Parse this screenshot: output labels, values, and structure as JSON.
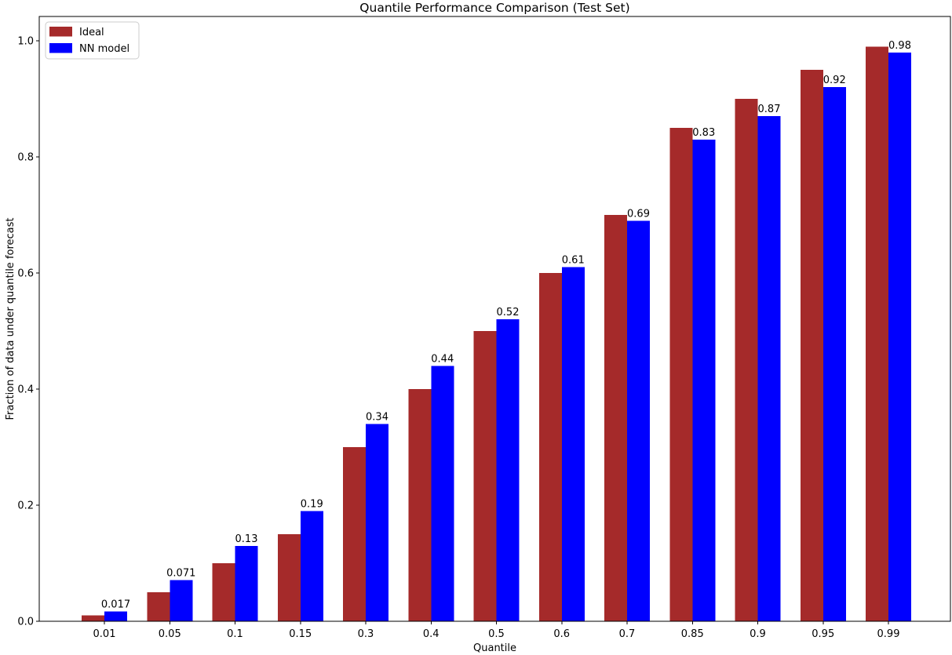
{
  "chart_data": {
    "type": "bar",
    "title": "Quantile Performance Comparison (Test Set)",
    "xlabel": "Quantile",
    "ylabel": "Fraction of data under quantile forecast",
    "categories": [
      "0.01",
      "0.05",
      "0.1",
      "0.15",
      "0.3",
      "0.4",
      "0.5",
      "0.6",
      "0.7",
      "0.85",
      "0.9",
      "0.95",
      "0.99"
    ],
    "series": [
      {
        "name": "Ideal",
        "color": "#A52A2A",
        "values": [
          0.01,
          0.05,
          0.1,
          0.15,
          0.3,
          0.4,
          0.5,
          0.6,
          0.7,
          0.85,
          0.9,
          0.95,
          0.99
        ]
      },
      {
        "name": "NN model",
        "color": "#0000FF",
        "values": [
          0.017,
          0.071,
          0.13,
          0.19,
          0.34,
          0.44,
          0.52,
          0.61,
          0.69,
          0.83,
          0.87,
          0.92,
          0.98
        ],
        "bar_labels": [
          "0.017",
          "0.071",
          "0.13",
          "0.19",
          "0.34",
          "0.44",
          "0.52",
          "0.61",
          "0.69",
          "0.83",
          "0.87",
          "0.92",
          "0.98"
        ]
      }
    ],
    "yticks": [
      "0.0",
      "0.2",
      "0.4",
      "0.6",
      "0.8",
      "1.0"
    ],
    "ylim": [
      0,
      1.04
    ],
    "legend_position": "upper left",
    "grid": false,
    "spine_color": "#000000",
    "legend_border_color": "#cccccc"
  }
}
